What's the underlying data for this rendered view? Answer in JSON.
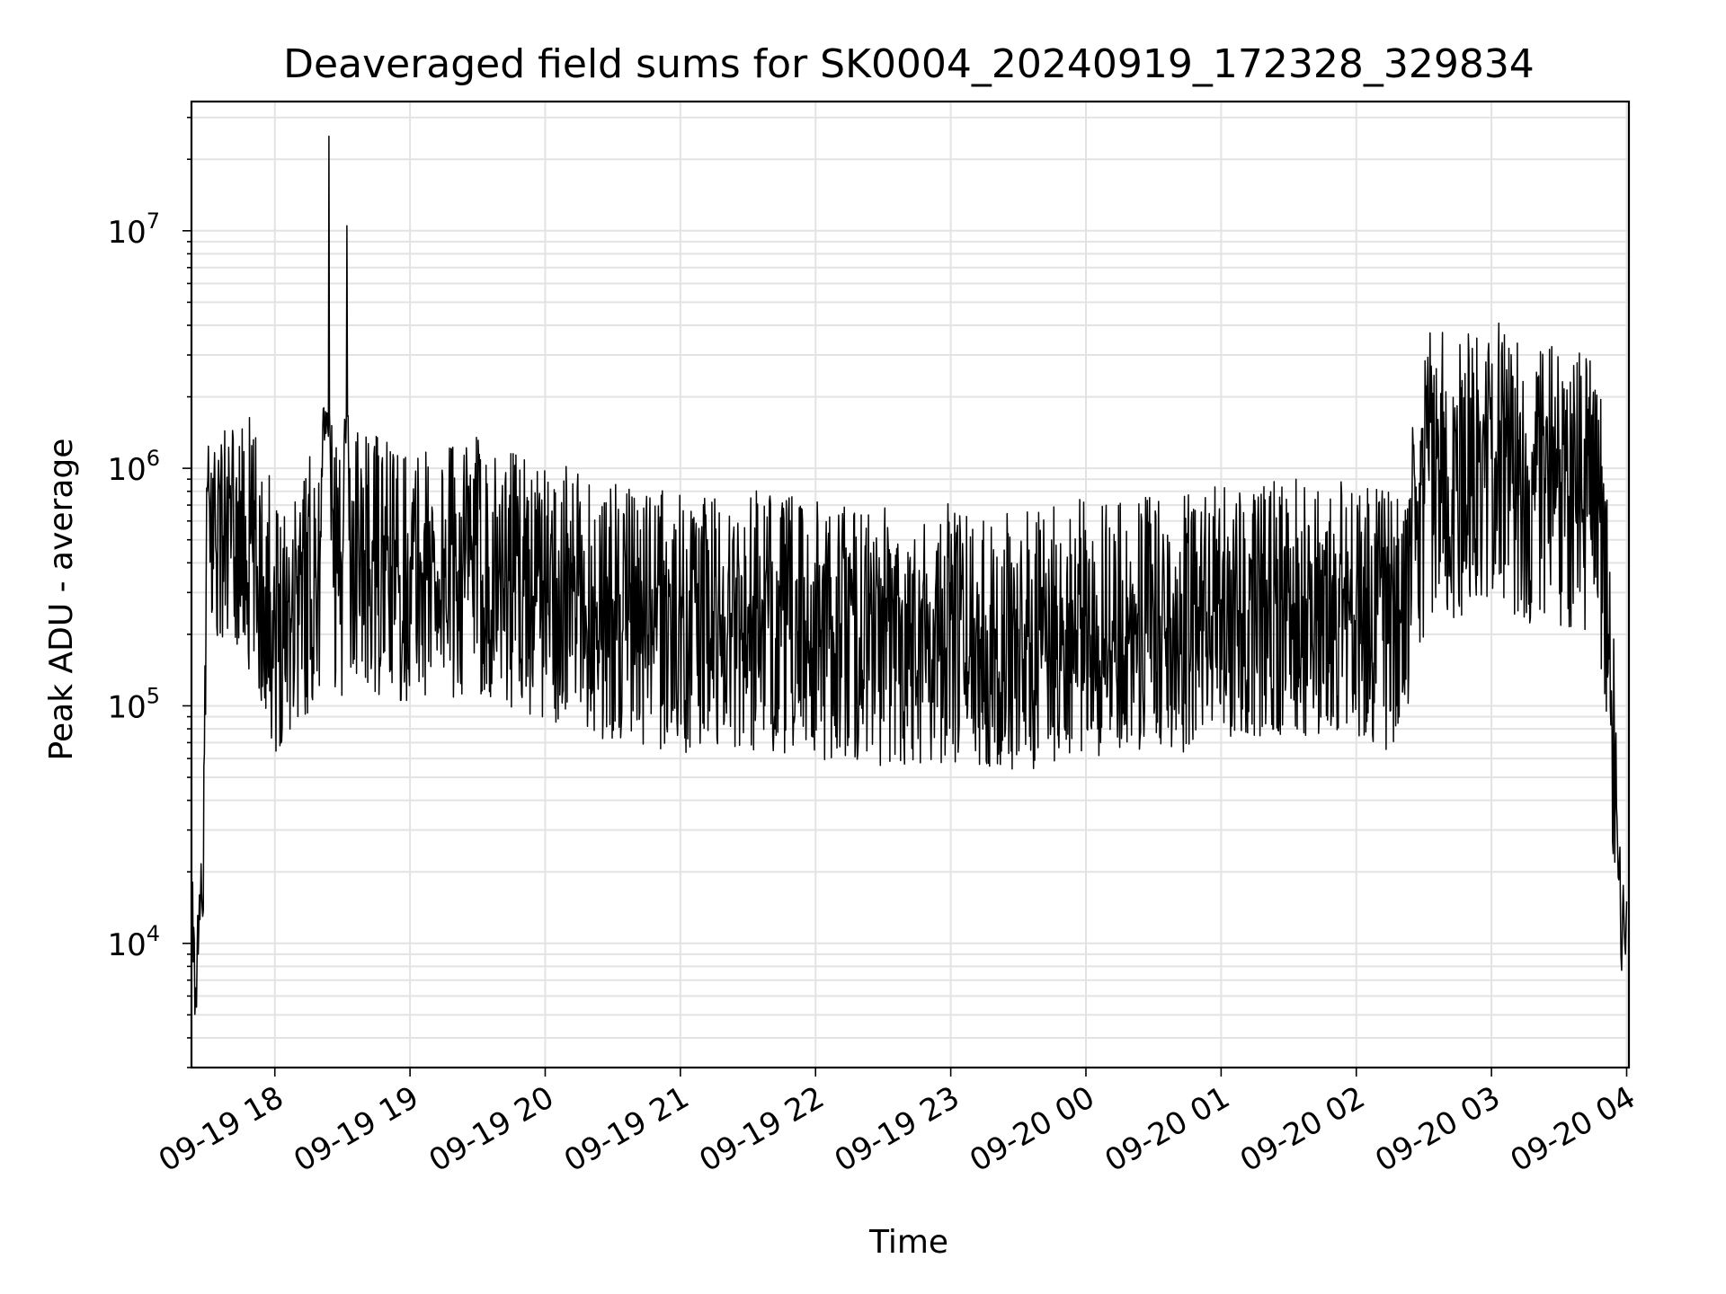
{
  "chart_data": {
    "type": "line",
    "title": "Deaveraged field sums for SK0004_20240919_172328_329834",
    "xlabel": "Time",
    "ylabel": "Peak ADU - average",
    "y_scale": "log",
    "ylim": [
      3000,
      35000000
    ],
    "xlim": [
      "2024-09-19 17:23",
      "2024-09-20 04:01"
    ],
    "grid": true,
    "legend": "none",
    "colors": {
      "line": "#000000",
      "grid": "#e3e3e3",
      "axes": "#000000"
    },
    "x_ticks": [
      "09-19 18",
      "09-19 19",
      "09-19 20",
      "09-19 21",
      "09-19 22",
      "09-19 23",
      "09-20 00",
      "09-20 01",
      "09-20 02",
      "09-20 03",
      "09-20 04"
    ],
    "y_ticks": [
      {
        "base": "10",
        "exp": "4"
      },
      {
        "base": "10",
        "exp": "5"
      },
      {
        "base": "10",
        "exp": "6"
      },
      {
        "base": "10",
        "exp": "7"
      }
    ],
    "series": [
      {
        "x": [
          "2024-09-19 17:23",
          "2024-09-19 17:25",
          "2024-09-19 17:26",
          "2024-09-19 17:27",
          "2024-09-19 17:28",
          "2024-09-19 17:30",
          "2024-09-19 17:31",
          "2024-09-19 17:33",
          "2024-09-19 17:36",
          "2024-09-19 17:40",
          "2024-09-19 17:45",
          "2024-09-19 17:50",
          "2024-09-19 17:55",
          "2024-09-19 17:58",
          "2024-09-19 18:00",
          "2024-09-19 18:05",
          "2024-09-19 18:10",
          "2024-09-19 18:20",
          "2024-09-19 18:24",
          "2024-09-19 18:25",
          "2024-09-19 18:30",
          "2024-09-19 18:32",
          "2024-09-19 18:33",
          "2024-09-19 18:40",
          "2024-09-19 19:00",
          "2024-09-19 19:30",
          "2024-09-19 20:00",
          "2024-09-19 20:30",
          "2024-09-19 21:00",
          "2024-09-19 21:30",
          "2024-09-19 22:00",
          "2024-09-19 22:30",
          "2024-09-19 23:00",
          "2024-09-19 23:30",
          "2024-09-20 00:00",
          "2024-09-20 00:30",
          "2024-09-20 00:50",
          "2024-09-20 01:00",
          "2024-09-20 01:30",
          "2024-09-20 02:00",
          "2024-09-20 02:20",
          "2024-09-20 02:30",
          "2024-09-20 02:45",
          "2024-09-20 03:00",
          "2024-09-20 03:15",
          "2024-09-20 03:30",
          "2024-09-20 03:40",
          "2024-09-20 03:48",
          "2024-09-20 03:52",
          "2024-09-20 03:55",
          "2024-09-20 03:58",
          "2024-09-20 04:00"
        ],
        "y": [
          14000,
          6500,
          9000,
          15000,
          13000,
          800000,
          700000,
          900000,
          850000,
          750000,
          800000,
          500000,
          350000,
          300000,
          250000,
          300000,
          350000,
          400000,
          25000000,
          500000,
          400000,
          10500000,
          500000,
          450000,
          400000,
          450000,
          350000,
          280000,
          250000,
          260000,
          240000,
          220000,
          230000,
          210000,
          240000,
          250000,
          260000,
          280000,
          300000,
          280000,
          250000,
          1000000,
          900000,
          1100000,
          900000,
          800000,
          850000,
          700000,
          200000,
          60000,
          10000,
          15000
        ]
      }
    ]
  }
}
